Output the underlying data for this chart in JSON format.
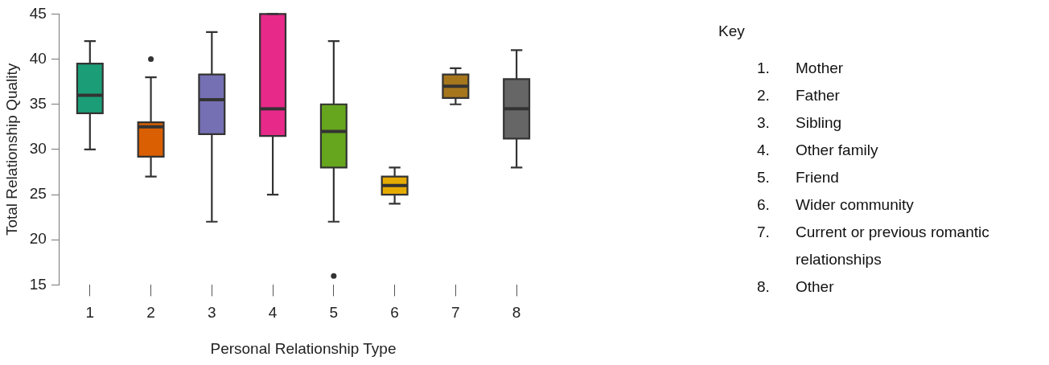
{
  "chart_data": {
    "type": "box",
    "xlabel": "Personal Relationship Type",
    "ylabel": "Total Relationship Quality",
    "categories": [
      "1",
      "2",
      "3",
      "4",
      "5",
      "6",
      "7",
      "8"
    ],
    "colors": [
      "#1b9e77",
      "#d95f02",
      "#7570b3",
      "#e7298a",
      "#66a61e",
      "#e6ab02",
      "#a6761d",
      "#666666"
    ],
    "boxes": [
      {
        "low": 30,
        "q1": 34,
        "median": 36,
        "q3": 39.5,
        "high": 42
      },
      {
        "low": 27,
        "q1": 29.2,
        "median": 32.5,
        "q3": 33,
        "high": 38,
        "outliers": [
          40
        ]
      },
      {
        "low": 22,
        "q1": 31.7,
        "median": 35.5,
        "q3": 38.3,
        "high": 43
      },
      {
        "low": 25,
        "q1": 31.5,
        "median": 34.5,
        "q3": 45,
        "high": 45
      },
      {
        "low": 22,
        "q1": 28,
        "median": 32,
        "q3": 35,
        "high": 42,
        "outliers": [
          16
        ]
      },
      {
        "low": 24,
        "q1": 25,
        "median": 26,
        "q3": 27,
        "high": 28
      },
      {
        "low": 35,
        "q1": 35.7,
        "median": 37,
        "q3": 38.3,
        "high": 39
      },
      {
        "low": 28,
        "q1": 31.2,
        "median": 34.5,
        "q3": 37.8,
        "high": 41
      }
    ],
    "ylim": [
      15,
      45
    ],
    "yticks": [
      15,
      20,
      25,
      30,
      35,
      40,
      45
    ],
    "grid": false,
    "legend_title": "Key",
    "annotations": [
      "1. Mother",
      "2. Father",
      "3. Sibling",
      "4. Other family",
      "5. Friend",
      "6. Wider community",
      "7. Current or previous romantic relationships",
      "8. Other"
    ]
  }
}
